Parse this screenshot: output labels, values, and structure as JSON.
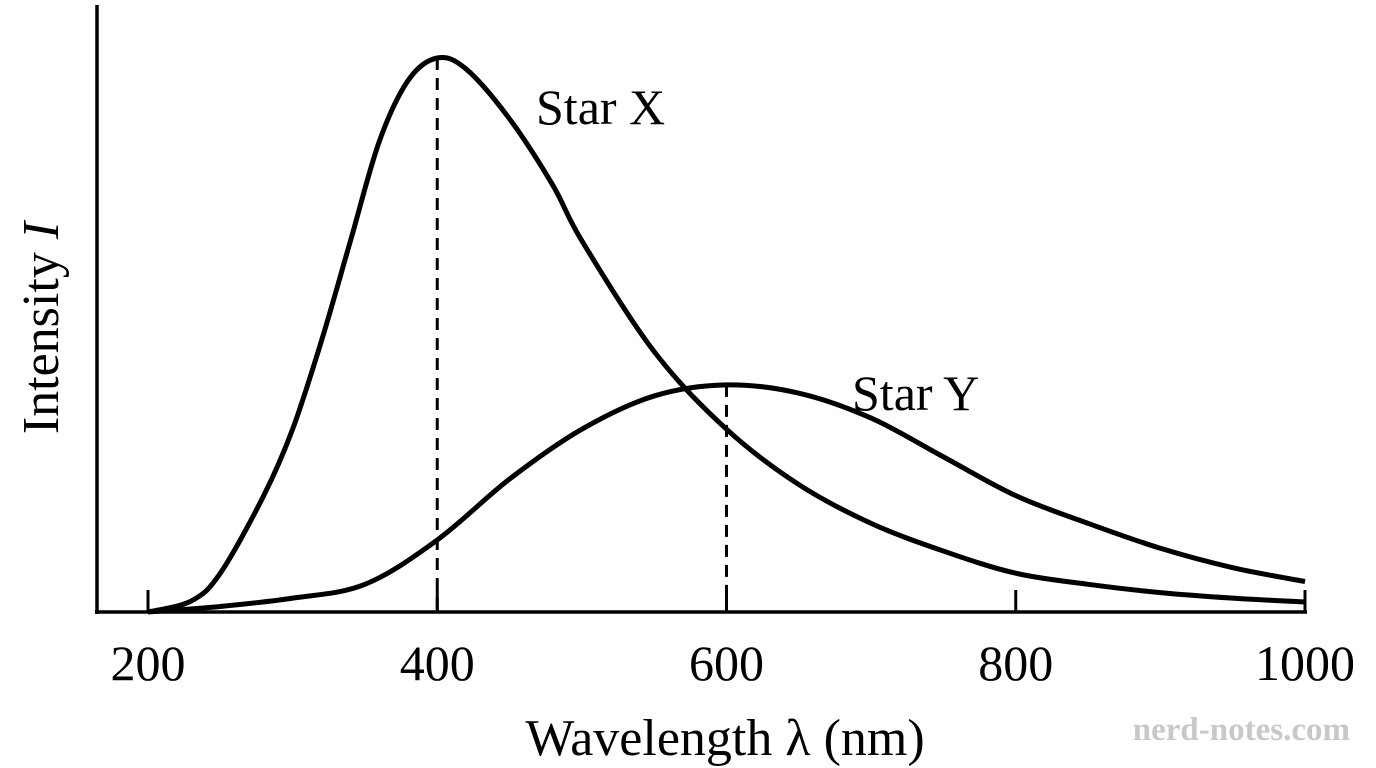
{
  "chart_data": {
    "type": "line",
    "xlabel_prefix": "Wavelength ",
    "xlabel_symbol": "λ",
    "xlabel_suffix": " (nm)",
    "ylabel_prefix": "Intensity ",
    "ylabel_symbol": "I",
    "xlim": [
      200,
      1000
    ],
    "ylim": [
      0,
      1
    ],
    "x_ticks": [
      200,
      400,
      600,
      800,
      1000
    ],
    "y_ticks_labeled": false,
    "grid": false,
    "legend": "none",
    "series": [
      {
        "name": "Star X",
        "peak_wavelength": 400,
        "points": [
          [
            200,
            0
          ],
          [
            230,
            0.02
          ],
          [
            250,
            0.07
          ],
          [
            280,
            0.21
          ],
          [
            300,
            0.33
          ],
          [
            320,
            0.49
          ],
          [
            340,
            0.67
          ],
          [
            360,
            0.85
          ],
          [
            380,
            0.96
          ],
          [
            400,
            1.0
          ],
          [
            420,
            0.98
          ],
          [
            450,
            0.89
          ],
          [
            480,
            0.77
          ],
          [
            500,
            0.67
          ],
          [
            550,
            0.47
          ],
          [
            600,
            0.33
          ],
          [
            650,
            0.23
          ],
          [
            700,
            0.16
          ],
          [
            750,
            0.11
          ],
          [
            800,
            0.07
          ],
          [
            850,
            0.05
          ],
          [
            900,
            0.035
          ],
          [
            950,
            0.025
          ],
          [
            1000,
            0.018
          ]
        ]
      },
      {
        "name": "Star Y",
        "peak_wavelength": 600,
        "points": [
          [
            200,
            0
          ],
          [
            250,
            0.01
          ],
          [
            300,
            0.025
          ],
          [
            350,
            0.05
          ],
          [
            400,
            0.13
          ],
          [
            450,
            0.24
          ],
          [
            500,
            0.33
          ],
          [
            550,
            0.39
          ],
          [
            600,
            0.41
          ],
          [
            650,
            0.395
          ],
          [
            700,
            0.35
          ],
          [
            750,
            0.28
          ],
          [
            800,
            0.21
          ],
          [
            850,
            0.16
          ],
          [
            900,
            0.115
          ],
          [
            950,
            0.08
          ],
          [
            1000,
            0.055
          ]
        ]
      }
    ]
  },
  "watermark": "nerd-notes.com"
}
